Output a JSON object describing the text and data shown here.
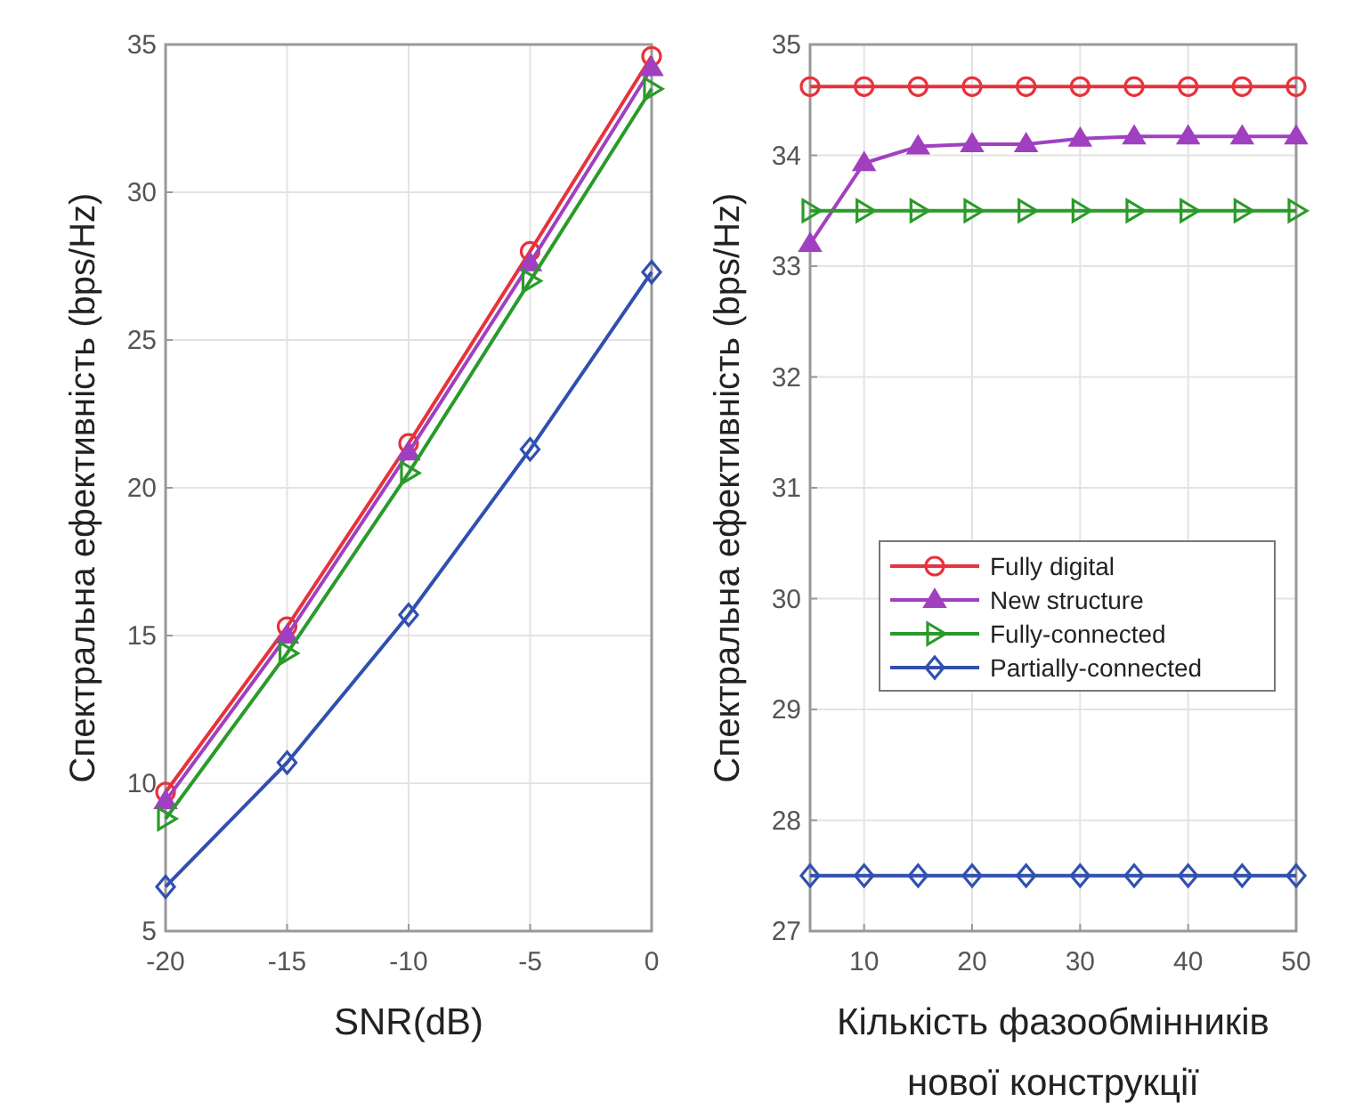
{
  "chart_data": [
    {
      "type": "line",
      "xlabel": "SNR(dB)",
      "ylabel": "Спектральна ефективність (bps/Hz)",
      "x": [
        -20,
        -15,
        -10,
        -5,
        0
      ],
      "xlim": [
        -20,
        0
      ],
      "xticks": [
        -20,
        -15,
        -10,
        -5,
        0
      ],
      "ylim": [
        5,
        35
      ],
      "yticks": [
        5,
        10,
        15,
        20,
        25,
        30,
        35
      ],
      "grid": true,
      "legend": false,
      "series": [
        {
          "color": "#e8323c",
          "marker": "circle",
          "values": [
            9.7,
            15.3,
            21.5,
            28,
            34.6
          ]
        },
        {
          "color": "#a040c0",
          "marker": "triangle",
          "values": [
            9.4,
            15,
            21.2,
            27.6,
            34.2
          ]
        },
        {
          "color": "#2a9a2a",
          "marker": "triangle-right",
          "values": [
            8.8,
            14.4,
            20.5,
            27,
            33.5
          ]
        },
        {
          "color": "#3050b0",
          "marker": "diamond",
          "values": [
            6.5,
            10.7,
            15.7,
            21.3,
            27.3
          ]
        }
      ]
    },
    {
      "type": "line",
      "xlabel": "Кількість фазообмінників нової конструкції",
      "ylabel": "Спектральна ефективність (bps/Hz)",
      "x": [
        5,
        10,
        15,
        20,
        25,
        30,
        35,
        40,
        45,
        50
      ],
      "xlim": [
        5,
        50
      ],
      "xticks": [
        10,
        20,
        30,
        40,
        50
      ],
      "ylim": [
        27,
        35
      ],
      "yticks": [
        27,
        28,
        29,
        30,
        31,
        32,
        33,
        34,
        35
      ],
      "grid": true,
      "legend": "right",
      "series": [
        {
          "name": "Fully digital",
          "color": "#e8323c",
          "marker": "circle",
          "values": [
            34.62,
            34.62,
            34.62,
            34.62,
            34.62,
            34.62,
            34.62,
            34.62,
            34.62,
            34.62
          ]
        },
        {
          "name": "New structure",
          "color": "#a040c0",
          "marker": "triangle",
          "values": [
            33.2,
            33.93,
            34.08,
            34.1,
            34.1,
            34.15,
            34.17,
            34.17,
            34.17,
            34.17
          ]
        },
        {
          "name": "Fully-connected",
          "color": "#2a9a2a",
          "marker": "triangle-right",
          "values": [
            33.5,
            33.5,
            33.5,
            33.5,
            33.5,
            33.5,
            33.5,
            33.5,
            33.5,
            33.5
          ]
        },
        {
          "name": "Partially-connected",
          "color": "#3050b0",
          "marker": "diamond",
          "values": [
            27.5,
            27.5,
            27.5,
            27.5,
            27.5,
            27.5,
            27.5,
            27.5,
            27.5,
            27.5
          ]
        }
      ]
    }
  ]
}
